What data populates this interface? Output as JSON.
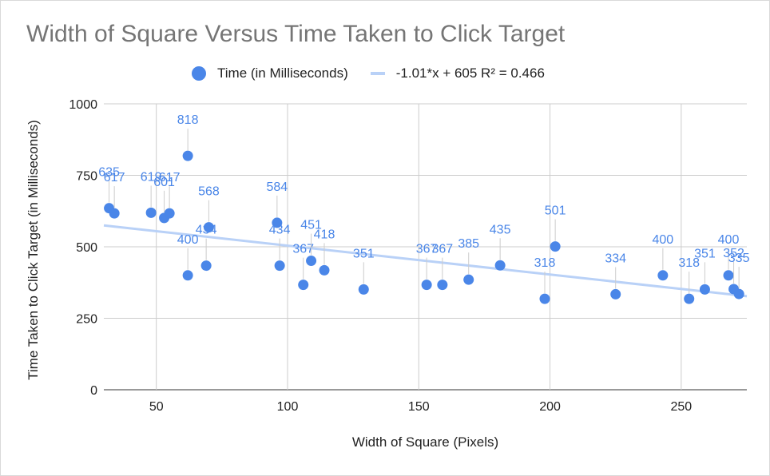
{
  "chart_data": {
    "type": "scatter",
    "title": "Width of Square Versus Time Taken to Click Target",
    "xlabel": "Width of Square (Pixels)",
    "ylabel": "Time Taken to Click Target (in Milliseconds)",
    "xlim": [
      30,
      275
    ],
    "ylim": [
      0,
      1000
    ],
    "x_ticks": [
      50,
      100,
      150,
      200,
      250
    ],
    "y_ticks": [
      0,
      250,
      500,
      750,
      1000
    ],
    "grid": true,
    "legend_position": "top",
    "series": [
      {
        "name": "Time (in Milliseconds)",
        "color": "#4a86e8",
        "points": [
          {
            "x": 32,
            "y": 635
          },
          {
            "x": 34,
            "y": 617
          },
          {
            "x": 48,
            "y": 619
          },
          {
            "x": 53,
            "y": 601
          },
          {
            "x": 55,
            "y": 617
          },
          {
            "x": 62,
            "y": 818
          },
          {
            "x": 62,
            "y": 400
          },
          {
            "x": 69,
            "y": 434
          },
          {
            "x": 70,
            "y": 568
          },
          {
            "x": 96,
            "y": 584
          },
          {
            "x": 97,
            "y": 434
          },
          {
            "x": 106,
            "y": 367
          },
          {
            "x": 109,
            "y": 451
          },
          {
            "x": 114,
            "y": 418
          },
          {
            "x": 129,
            "y": 351
          },
          {
            "x": 153,
            "y": 367
          },
          {
            "x": 159,
            "y": 367
          },
          {
            "x": 169,
            "y": 385
          },
          {
            "x": 181,
            "y": 435
          },
          {
            "x": 198,
            "y": 318
          },
          {
            "x": 202,
            "y": 501
          },
          {
            "x": 225,
            "y": 334
          },
          {
            "x": 243,
            "y": 400
          },
          {
            "x": 253,
            "y": 318
          },
          {
            "x": 259,
            "y": 351
          },
          {
            "x": 268,
            "y": 400
          },
          {
            "x": 270,
            "y": 352
          },
          {
            "x": 272,
            "y": 335
          }
        ]
      }
    ],
    "trendline": {
      "name": "-1.01*x + 605 R² = 0.466",
      "slope": -1.01,
      "intercept": 605,
      "color": "#b9d1f7"
    }
  }
}
